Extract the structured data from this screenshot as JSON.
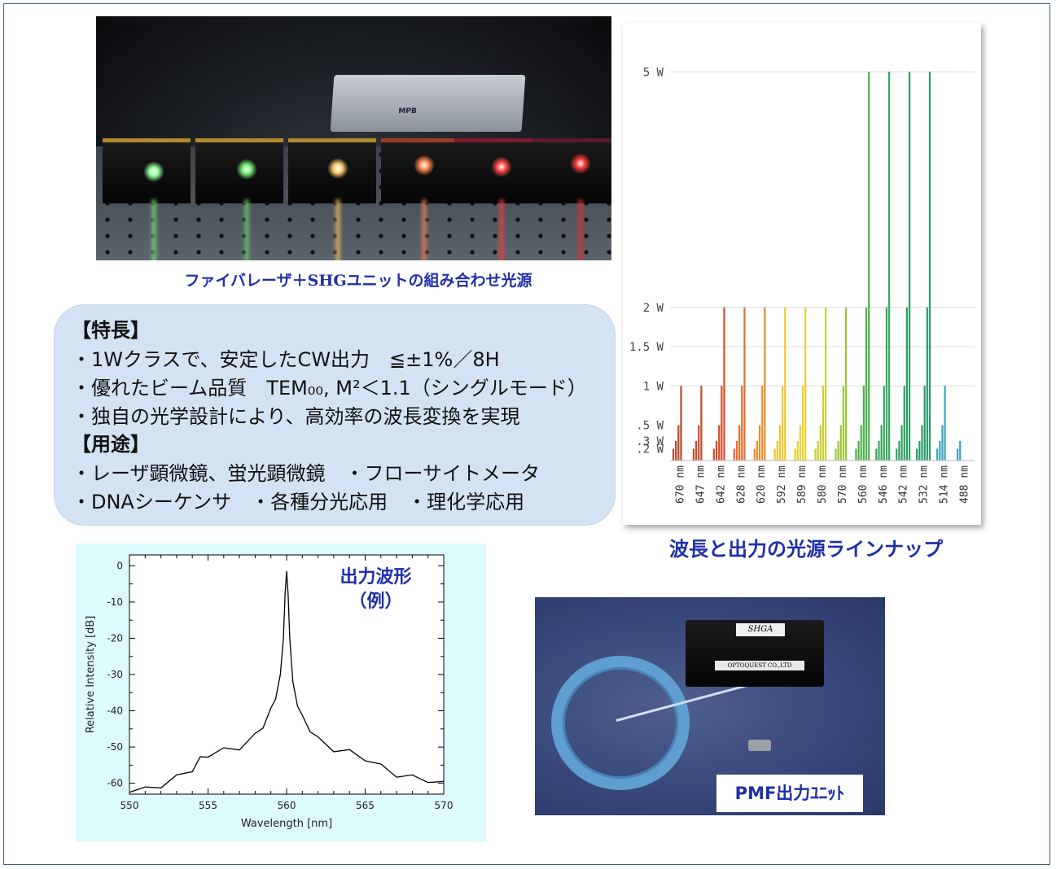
{
  "photo1": {
    "caption": "ファイバレーザ＋SHGユニットの組み合わせ光源",
    "controller_label": "MPB"
  },
  "features": {
    "heading_features": "【特長】",
    "bullets_features": [
      "・1Wクラスで、安定したCW出力　≦±1%／8H",
      "・優れたビーム品質　TEM₀₀, M²＜1.1（シングルモード）",
      "・独自の光学設計により、高効率の波長変換を実現"
    ],
    "heading_uses": "【用途】",
    "bullets_uses": [
      "・レーザ顕微鏡、蛍光顕微鏡　・フローサイトメータ",
      "・DNAシーケンサ　・各種分光応用　・理化学応用"
    ]
  },
  "lineup": {
    "caption": "波長と出力の光源ラインナップ"
  },
  "spectrum": {
    "title_line1": "出力波形",
    "title_line2": "（例）"
  },
  "photo2": {
    "unit_label": "SHGA",
    "maker_label": "OPTOQUEST CO.,LTD",
    "caption": "PMF出力ﾕﾆｯﾄ"
  },
  "chart_data": [
    {
      "type": "bar",
      "title": "",
      "y_tick_labels": [
        "5 W",
        "2 W",
        "1.5 W",
        "1 W",
        ".5 W",
        ".3 W",
        ".2 W"
      ],
      "y_tick_values": [
        5,
        2,
        1.5,
        1,
        0.5,
        0.3,
        0.2
      ],
      "ylim": [
        0,
        5.5
      ],
      "grid": true,
      "groups": [
        {
          "wavelength": "670 nm",
          "color": "#b14a2c",
          "values": [
            0.2,
            0.3,
            0.5,
            1.0
          ]
        },
        {
          "wavelength": "647 nm",
          "color": "#c24a2a",
          "values": [
            0.2,
            0.3,
            0.5,
            1.0
          ]
        },
        {
          "wavelength": "642 nm",
          "color": "#d9492a",
          "values": [
            0.2,
            0.3,
            0.5,
            1.0,
            2.0
          ]
        },
        {
          "wavelength": "628 nm",
          "color": "#e86a2a",
          "values": [
            0.2,
            0.3,
            0.5,
            1.0,
            2.0
          ]
        },
        {
          "wavelength": "620 nm",
          "color": "#ee8a2c",
          "values": [
            0.2,
            0.3,
            0.5,
            1.0,
            2.0
          ]
        },
        {
          "wavelength": "592 nm",
          "color": "#f0c52c",
          "values": [
            0.2,
            0.3,
            0.5,
            1.0,
            2.0
          ]
        },
        {
          "wavelength": "589 nm",
          "color": "#e9d22e",
          "values": [
            0.2,
            0.3,
            0.5,
            1.0,
            2.0
          ]
        },
        {
          "wavelength": "580 nm",
          "color": "#c9cf32",
          "values": [
            0.2,
            0.3,
            0.5,
            1.0,
            2.0
          ]
        },
        {
          "wavelength": "570 nm",
          "color": "#9ec534",
          "values": [
            0.2,
            0.3,
            0.5,
            1.0,
            2.0
          ]
        },
        {
          "wavelength": "560 nm",
          "color": "#4cb04a",
          "values": [
            0.2,
            0.3,
            0.5,
            1.0,
            2.0,
            5.0
          ]
        },
        {
          "wavelength": "546 nm",
          "color": "#37a65a",
          "values": [
            0.2,
            0.3,
            0.5,
            1.0,
            2.0,
            5.0
          ]
        },
        {
          "wavelength": "542 nm",
          "color": "#2f9f63",
          "values": [
            0.2,
            0.3,
            0.5,
            1.0,
            2.0,
            5.0
          ]
        },
        {
          "wavelength": "532 nm",
          "color": "#2b9a6a",
          "values": [
            0.2,
            0.3,
            0.5,
            1.0,
            2.0,
            5.0
          ]
        },
        {
          "wavelength": "514 nm",
          "color": "#3aa6c2",
          "values": [
            0.2,
            0.3,
            0.5,
            1.0
          ]
        },
        {
          "wavelength": "488 nm",
          "color": "#3a9fd0",
          "values": [
            0.2,
            0.3
          ]
        }
      ]
    },
    {
      "type": "line",
      "title": "",
      "xlabel": "Wavelength [nm]",
      "ylabel": "Relative Intensity [dB]",
      "xlim": [
        550,
        570
      ],
      "ylim": [
        -63,
        3
      ],
      "x_ticks": [
        550,
        555,
        560,
        565,
        570
      ],
      "y_ticks": [
        0,
        -10,
        -20,
        -30,
        -40,
        -50,
        -60
      ],
      "series": [
        {
          "x": [
            550,
            551,
            552,
            553,
            554,
            554.5,
            555,
            556,
            557,
            558,
            558.5,
            559,
            559.3,
            559.6,
            559.8,
            559.9,
            560,
            560.1,
            560.2,
            560.4,
            560.7,
            561,
            561.5,
            562,
            563,
            564,
            565,
            566,
            567,
            568,
            569,
            570
          ],
          "y": [
            -62.5,
            -61.8,
            -60.5,
            -58.5,
            -56,
            -53.5,
            -52,
            -51,
            -50,
            -47,
            -44,
            -40,
            -36,
            -30,
            -20,
            -8,
            -1.5,
            -8,
            -20,
            -32,
            -38,
            -42,
            -45,
            -48,
            -50.5,
            -51.5,
            -53,
            -55.5,
            -57.5,
            -58.5,
            -59,
            -59.5
          ]
        }
      ]
    }
  ]
}
